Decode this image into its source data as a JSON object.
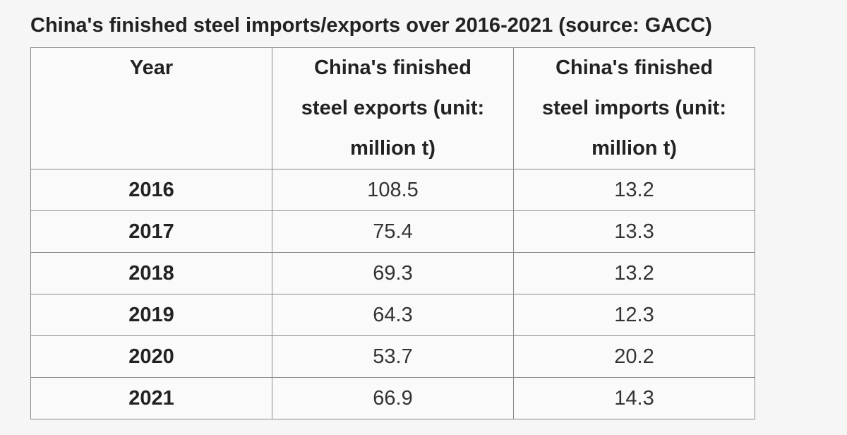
{
  "title": "China's finished steel imports/exports over 2016-2021 (source: GACC)",
  "table": {
    "header": [
      "Year",
      "China's finished steel exports (unit: million t)",
      "China's finished steel imports (unit: million t)"
    ],
    "rows": [
      [
        "2016",
        "108.5",
        "13.2"
      ],
      [
        "2017",
        "75.4",
        "13.3"
      ],
      [
        "2018",
        "69.3",
        "13.2"
      ],
      [
        "2019",
        "64.3",
        "12.3"
      ],
      [
        "2020",
        "53.7",
        "20.2"
      ],
      [
        "2021",
        "66.9",
        "14.3"
      ]
    ]
  }
}
